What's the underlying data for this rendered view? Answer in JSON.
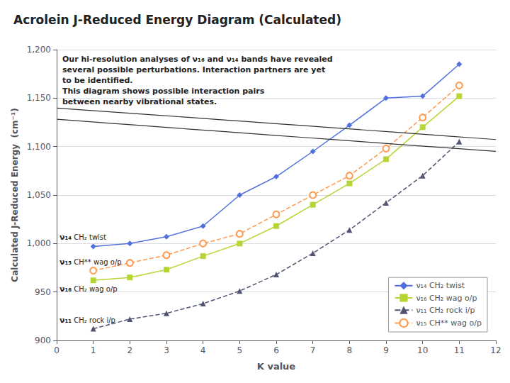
{
  "chart_data": {
    "type": "line",
    "title": "Acrolein J-Reduced Energy Diagram (Calculated)",
    "x_label": "K value",
    "y_label": "Calculated J-Reduced Energy  (cm⁻¹)",
    "xlim": [
      0,
      12
    ],
    "ylim": [
      900,
      1200
    ],
    "xticks": [
      0,
      1,
      2,
      3,
      4,
      5,
      6,
      7,
      8,
      9,
      10,
      11,
      12
    ],
    "yticks": [
      900,
      950,
      1000,
      1050,
      1100,
      1150,
      1200
    ],
    "grid": "y",
    "legend": "lower right",
    "x": [
      1,
      2,
      3,
      4,
      5,
      6,
      7,
      8,
      9,
      10,
      11
    ],
    "series": [
      {
        "name": "ν₁₄ CH₂ twist",
        "values": [
          997,
          1000,
          1007,
          1018,
          1050,
          1069,
          1095,
          1122,
          1150,
          1152,
          1185
        ],
        "marker": "diamond",
        "line_style": "solid",
        "side_label": [
          "ν₁₄",
          "CH₂ twist"
        ]
      },
      {
        "name": "ν₁₆ CH₂ wag o/p",
        "values": [
          962,
          965,
          973,
          987,
          1000,
          1018,
          1040,
          1062,
          1087,
          1120,
          1152
        ],
        "marker": "square",
        "line_style": "solid",
        "side_label": [
          "ν₁₆",
          "CH₂ wag o/p"
        ]
      },
      {
        "name": "ν₁₁ CH₂ rock i/p",
        "values": [
          912,
          922,
          928,
          938,
          951,
          968,
          990,
          1014,
          1042,
          1070,
          1105
        ],
        "marker": "triangle",
        "line_style": "dashed",
        "side_label": [
          "ν₁₁",
          "CH₂ rock i/p"
        ]
      },
      {
        "name": "ν₁₅ CH** wag o/p",
        "values": [
          972,
          980,
          988,
          1000,
          1010,
          1030,
          1050,
          1070,
          1098,
          1130,
          1163
        ],
        "marker": "open_circle",
        "line_style": "dashed",
        "side_label": [
          "ν₁₅",
          "CH** wag o/p"
        ]
      }
    ],
    "ellipse": {
      "cx": 9.5,
      "cy": 1108,
      "width": 4.2,
      "height": 175,
      "angle": 20
    },
    "annotations": [
      "Our hi-resolution analyses of ν₁₆ and ν₁₄ bands have revealed",
      "several possible perturbations. Interaction partners are yet",
      "to be identified.",
      "This diagram shows possible interaction pairs",
      "between nearby vibrational states."
    ]
  }
}
